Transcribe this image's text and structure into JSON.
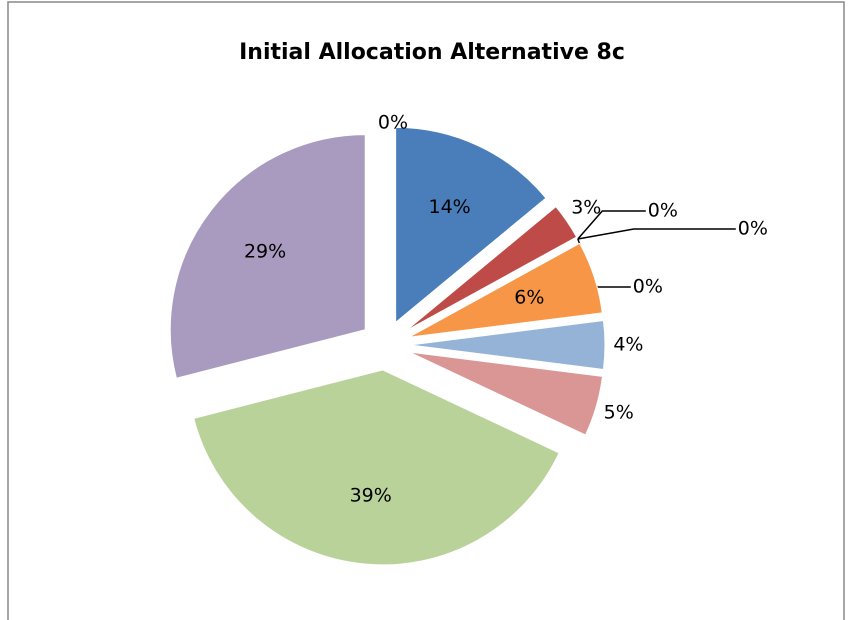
{
  "chart_data": {
    "type": "pie",
    "title": "Initial Allocation Alternative 8c",
    "values": [
      14,
      3,
      0,
      0,
      0,
      6,
      4,
      5,
      39,
      29,
      0
    ],
    "value_labels": [
      "14%",
      "3%",
      "0%",
      "0%",
      "0%",
      "6%",
      "4%",
      "5%",
      "39%",
      "29%",
      "0%"
    ],
    "colors": [
      "#4a7ebb",
      "#be4b48",
      "#98b954",
      "#7d60a0",
      "#46aac5",
      "#f79646",
      "#95b3d7",
      "#d99694",
      "#b9d29a",
      "#a89bbf",
      "#2c4d75"
    ]
  }
}
